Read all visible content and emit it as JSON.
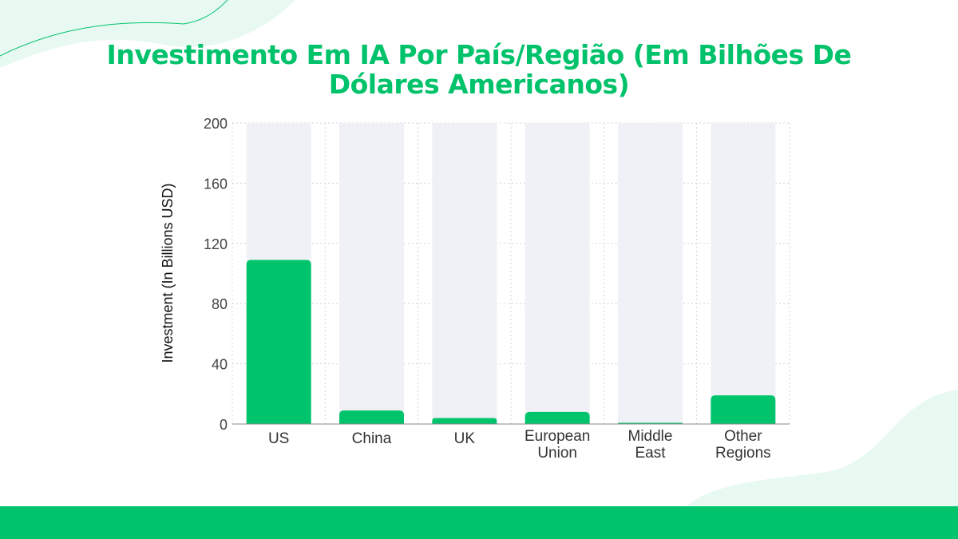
{
  "colors": {
    "accent": "#00c46c",
    "bar": "#00c46c",
    "bar_background": "#f0f1f6",
    "decoration": "#e8f9f1"
  },
  "chart_data": {
    "type": "bar",
    "title": "Investimento Em IA Por País/Região (Em Bilhões De Dólares Americanos)",
    "xlabel": "",
    "ylabel": "Investment (In Billions USD)",
    "categories": [
      [
        "US"
      ],
      [
        "China"
      ],
      [
        "UK"
      ],
      [
        "European",
        "Union"
      ],
      [
        "Middle",
        "East"
      ],
      [
        "Other",
        "Regions"
      ]
    ],
    "values": [
      109,
      9,
      4,
      8,
      0.5,
      19
    ],
    "ylim": [
      0,
      200
    ],
    "yticks": [
      "0",
      "40",
      "80",
      "120",
      "160",
      "200"
    ],
    "grid": true,
    "legend": "none"
  }
}
